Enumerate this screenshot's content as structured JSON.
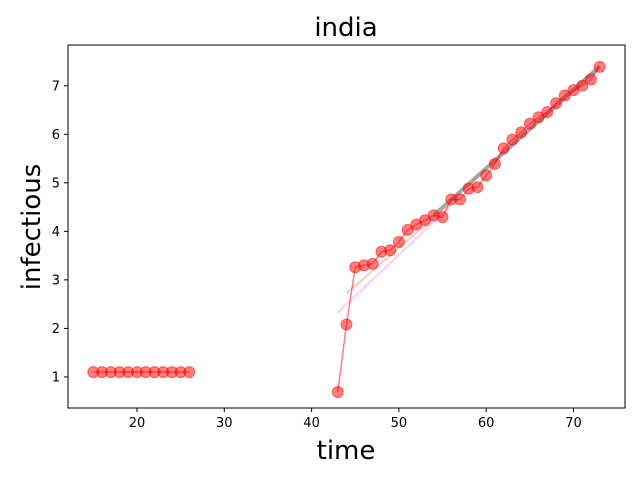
{
  "chart_data": {
    "type": "scatter",
    "title": "india",
    "xlabel": "time",
    "ylabel": "infectious",
    "xlim": [
      12.1,
      75.9
    ],
    "ylim": [
      0.36,
      7.84
    ],
    "xticks": [
      20,
      30,
      40,
      50,
      60,
      70
    ],
    "yticks": [
      1,
      2,
      3,
      4,
      5,
      6,
      7
    ],
    "grid": false,
    "colors": {
      "points": "#ff0000",
      "line": "#ff0000",
      "fit_gray": "#808080",
      "fit_pink": "#ee82ee",
      "fit_tan": "#d2b48c"
    },
    "series": [
      {
        "x": [
          15,
          16,
          17,
          18,
          19,
          20,
          21,
          22,
          23,
          24,
          25,
          26
        ],
        "y": [
          1.1,
          1.1,
          1.1,
          1.1,
          1.1,
          1.1,
          1.1,
          1.1,
          1.1,
          1.1,
          1.1,
          1.1
        ]
      },
      {
        "x": [
          43,
          44,
          45,
          46,
          47,
          48,
          49,
          50,
          51,
          52,
          53,
          54,
          55,
          56,
          57,
          58,
          59,
          60,
          61,
          62,
          63,
          64,
          65,
          66,
          67,
          68,
          69,
          70,
          71,
          72,
          73
        ],
        "y": [
          0.69,
          2.08,
          3.26,
          3.3,
          3.33,
          3.58,
          3.61,
          3.78,
          4.03,
          4.14,
          4.23,
          4.33,
          4.29,
          4.66,
          4.66,
          4.88,
          4.91,
          5.15,
          5.39,
          5.71,
          5.89,
          6.04,
          6.22,
          6.35,
          6.46,
          6.64,
          6.8,
          6.91,
          7.0,
          7.13,
          7.39
        ]
      }
    ],
    "fit_lines": [
      {
        "x": [
          54,
          73
        ],
        "y": [
          4.33,
          7.4
        ],
        "color": "fit_gray",
        "width": 4,
        "opacity": 0.7
      },
      {
        "x": [
          43,
          56
        ],
        "y": [
          2.33,
          4.53
        ],
        "color": "fit_pink",
        "width": 2.5,
        "opacity": 0.35
      },
      {
        "x": [
          44,
          56
        ],
        "y": [
          2.72,
          4.6
        ],
        "color": "fit_tan",
        "width": 2.5,
        "opacity": 0.5
      }
    ]
  }
}
